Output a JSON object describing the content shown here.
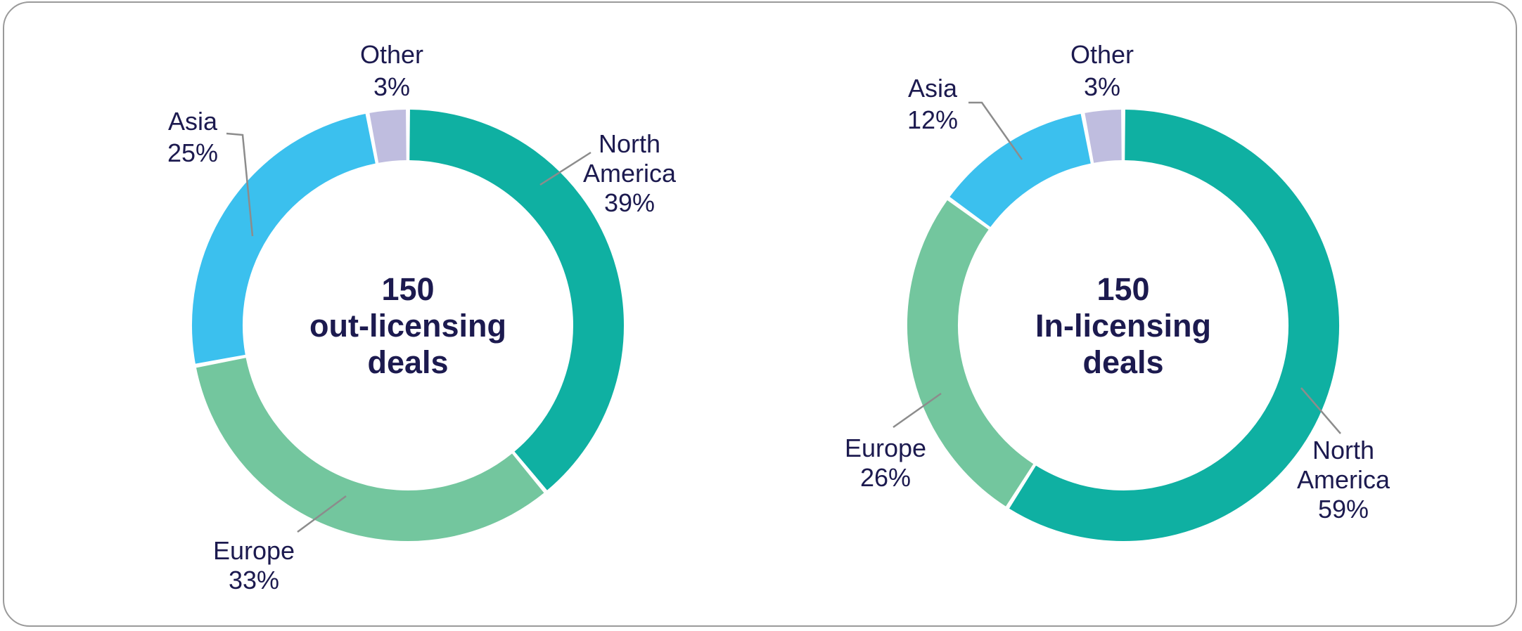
{
  "card": {
    "background": "#FFFFFF",
    "border_color": "#9A9A9A"
  },
  "style": {
    "text_color": "#1C1A4F",
    "leader_line_color": "#8C8C8C"
  },
  "chart_data": [
    {
      "type": "pie",
      "subtype": "donut",
      "title": "150 out-licensing deals",
      "center_lines": [
        "150",
        "out-licensing",
        "deals"
      ],
      "total_deals": 150,
      "categories": [
        "North America",
        "Europe",
        "Asia",
        "Other"
      ],
      "values": [
        39,
        33,
        25,
        3
      ],
      "unit": "%",
      "legend_position": "outside-labels-with-leader-lines",
      "start_angle_deg": 0,
      "direction": "clockwise",
      "hole_ratio": 0.77,
      "slices": [
        {
          "label": "North America",
          "value": 39,
          "pct_label": "39%",
          "color": "#0FB0A2",
          "color_name": "teal"
        },
        {
          "label": "Europe",
          "value": 33,
          "pct_label": "33%",
          "color": "#73C69E",
          "color_name": "green"
        },
        {
          "label": "Asia",
          "value": 25,
          "pct_label": "25%",
          "color": "#3BC0EE",
          "color_name": "sky-blue"
        },
        {
          "label": "Other",
          "value": 3,
          "pct_label": "3%",
          "color": "#BFBDDF",
          "color_name": "lavender"
        }
      ]
    },
    {
      "type": "pie",
      "subtype": "donut",
      "title": "150 In-licensing deals",
      "center_lines": [
        "150",
        "In-licensing",
        "deals"
      ],
      "total_deals": 150,
      "categories": [
        "North America",
        "Europe",
        "Asia",
        "Other"
      ],
      "values": [
        59,
        26,
        12,
        3
      ],
      "unit": "%",
      "legend_position": "outside-labels-with-leader-lines",
      "start_angle_deg": 0,
      "direction": "clockwise",
      "hole_ratio": 0.77,
      "slices": [
        {
          "label": "North America",
          "value": 59,
          "pct_label": "59%",
          "color": "#0FB0A2",
          "color_name": "teal"
        },
        {
          "label": "Europe",
          "value": 26,
          "pct_label": "26%",
          "color": "#73C69E",
          "color_name": "green"
        },
        {
          "label": "Asia",
          "value": 12,
          "pct_label": "12%",
          "color": "#3BC0EE",
          "color_name": "sky-blue"
        },
        {
          "label": "Other",
          "value": 3,
          "pct_label": "3%",
          "color": "#BFBDDF",
          "color_name": "lavender"
        }
      ]
    }
  ]
}
